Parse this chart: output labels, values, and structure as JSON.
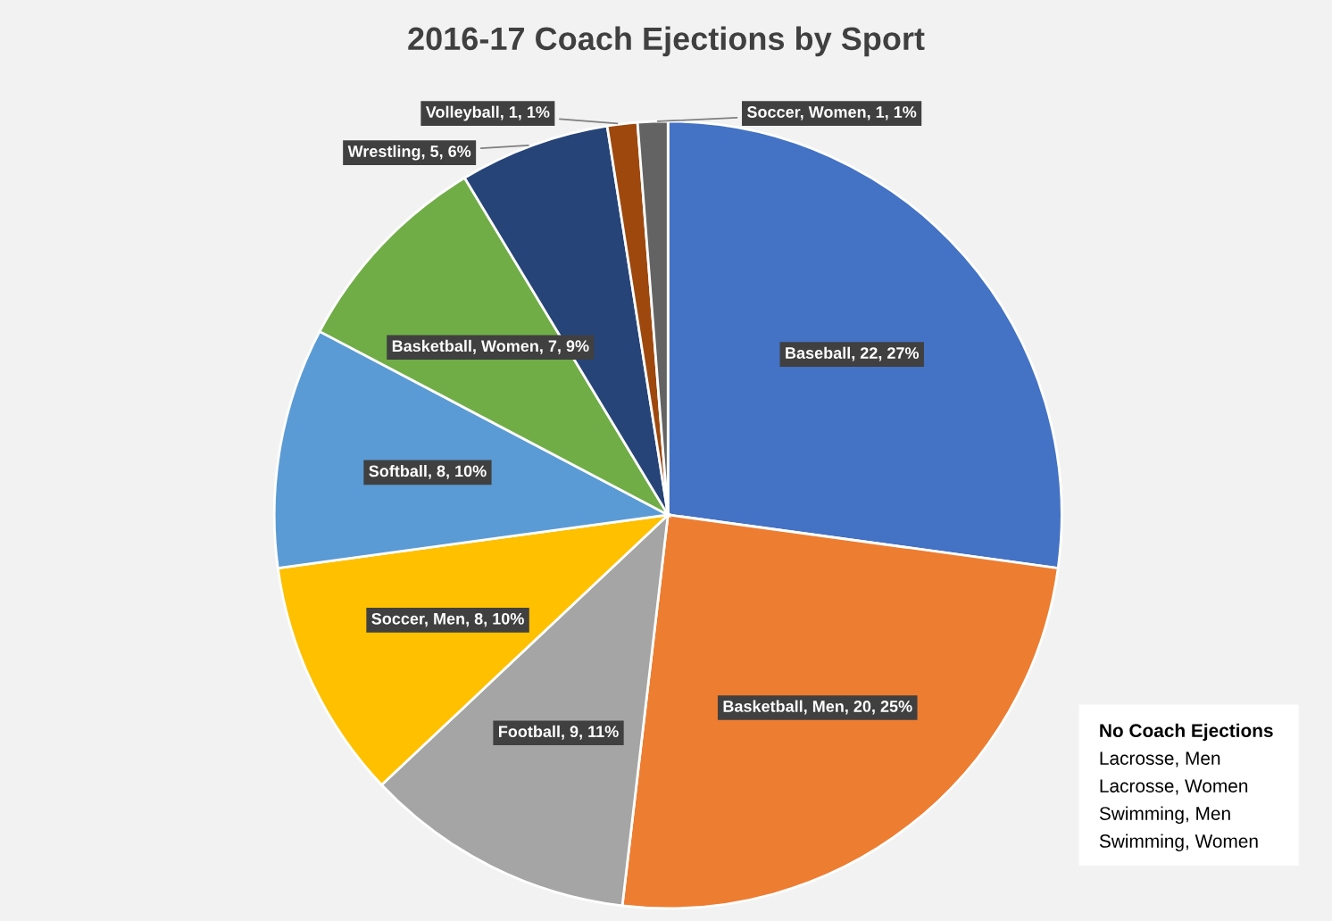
{
  "chart_data": {
    "type": "pie",
    "title": "2016-17 Coach Ejections by Sport",
    "categories": [
      "Baseball",
      "Basketball, Men",
      "Football",
      "Soccer, Men",
      "Softball",
      "Basketball, Women",
      "Wrestling",
      "Volleyball",
      "Soccer, Women"
    ],
    "values": [
      22,
      20,
      9,
      8,
      8,
      7,
      5,
      1,
      1
    ],
    "value_labels": [
      "22, 27%",
      "20, 25%",
      "9, 11%",
      "8, 10%",
      "8, 10%",
      "7, 9%",
      "5, 6%",
      "1, 1%",
      "1, 1%"
    ],
    "colors": [
      "#4472c4",
      "#ed7d31",
      "#a5a5a5",
      "#ffc000",
      "#5b9bd5",
      "#70ad47",
      "#264478",
      "#9e480e",
      "#636363"
    ],
    "annotations": [
      "No Coach Ejections",
      "Lacrosse, Men",
      "Lacrosse, Women",
      "Swimming, Men",
      "Swimming, Women"
    ],
    "legend": false
  }
}
